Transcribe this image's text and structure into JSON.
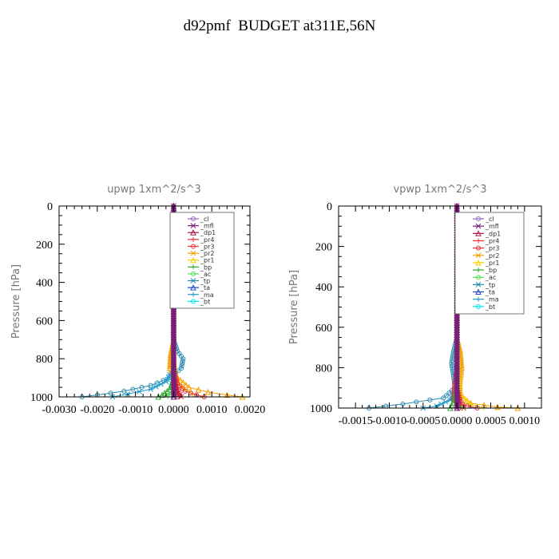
{
  "title": "d92pmf  BUDGET at311E,56N",
  "legend_items": [
    {
      "name": "_cl",
      "color": "#9a66cc"
    },
    {
      "name": "_mfl",
      "color": "#7a1f7a"
    },
    {
      "name": "_dp1",
      "color": "#b0104a"
    },
    {
      "name": "_pr4",
      "color": "#e8303a"
    },
    {
      "name": "_pr3",
      "color": "#e8303a"
    },
    {
      "name": "_pr2",
      "color": "#f4a000"
    },
    {
      "name": "_pr1",
      "color": "#f5d000"
    },
    {
      "name": "_bp",
      "color": "#33aa33"
    },
    {
      "name": "_ac",
      "color": "#55dd55"
    },
    {
      "name": "_tp",
      "color": "#2a8ab0"
    },
    {
      "name": "_ta",
      "color": "#2244cc"
    },
    {
      "name": "_ma",
      "color": "#2299cc"
    },
    {
      "name": "_bt",
      "color": "#00e5ee"
    }
  ],
  "chart_data": [
    {
      "type": "line",
      "title": "upwp   1xm^2/s^3",
      "ylabel": "Pressure  [hPa]",
      "xlim": [
        -0.003,
        0.002
      ],
      "ylim": [
        1000,
        0
      ],
      "xticks": [
        "-0.0030",
        "-0.0020",
        "-0.0010",
        "0.0000",
        "0.0010",
        "0.0020"
      ],
      "xtick_values": [
        -0.003,
        -0.002,
        -0.001,
        0.0,
        0.001,
        0.002
      ],
      "yticks": [
        "0",
        "200",
        "400",
        "600",
        "800",
        "1000"
      ],
      "ytick_values": [
        0,
        200,
        400,
        600,
        800,
        1000
      ],
      "legend_position": "top-right",
      "series": [
        {
          "name": "_tp",
          "p": [
            0,
            700,
            760,
            800,
            850,
            900,
            940,
            970,
            990,
            1000
          ],
          "x": [
            0,
            0,
            0.0001,
            0.00025,
            0.0002,
            -0.0001,
            -0.0006,
            -0.0013,
            -0.002,
            -0.0024
          ]
        },
        {
          "name": "_ma",
          "p": [
            0,
            850,
            920,
            960,
            985,
            1000
          ],
          "x": [
            0,
            0,
            -0.0002,
            -0.0006,
            -0.0012,
            -0.0016
          ]
        },
        {
          "name": "_pr2",
          "p": [
            0,
            700,
            780,
            850,
            900,
            950,
            975,
            990,
            1000
          ],
          "x": [
            0,
            0,
            -8e-05,
            -0.0001,
            0.0001,
            0.0004,
            0.0009,
            0.0014,
            0.0018
          ]
        },
        {
          "name": "_pr1",
          "p": [
            0,
            800,
            900,
            950,
            985,
            1000
          ],
          "x": [
            0,
            0,
            8e-05,
            0.0002,
            0.0005,
            0.0008
          ]
        },
        {
          "name": "_pr3",
          "p": [
            0,
            850,
            930,
            970,
            990,
            1000
          ],
          "x": [
            0,
            0,
            0.0001,
            0.0003,
            0.0006,
            0.0008
          ]
        },
        {
          "name": "_pr4",
          "p": [
            0,
            900,
            960,
            1000
          ],
          "x": [
            0,
            0,
            0.0001,
            0.0002
          ]
        },
        {
          "name": "_bp",
          "p": [
            0,
            900,
            960,
            990,
            1000
          ],
          "x": [
            0,
            0,
            -0.0001,
            -0.0003,
            -0.0004
          ]
        },
        {
          "name": "_ac",
          "p": [
            0,
            930,
            975,
            1000
          ],
          "x": [
            0,
            0,
            -6e-05,
            -0.00015
          ]
        },
        {
          "name": "_dp1",
          "p": [
            0,
            900,
            1000
          ],
          "x": [
            0,
            0,
            0.0001
          ]
        },
        {
          "name": "_cl",
          "p": [
            0,
            1000
          ],
          "x": [
            0,
            0
          ]
        },
        {
          "name": "_mfl",
          "p": [
            0,
            1000
          ],
          "x": [
            0,
            0
          ]
        }
      ]
    },
    {
      "type": "line",
      "title": "vpwp   1xm^2/s^3",
      "ylabel": "Pressure  [hPa]",
      "xlim": [
        -0.00175,
        0.00125
      ],
      "ylim": [
        1000,
        0
      ],
      "xticks": [
        "-0.0015",
        "-0.0010",
        "-0.0005",
        "0.0000",
        "0.0005",
        "0.0010"
      ],
      "xtick_values": [
        -0.0015,
        -0.001,
        -0.0005,
        0.0,
        0.0005,
        0.001
      ],
      "yticks": [
        "0",
        "200",
        "400",
        "600",
        "800",
        "1000"
      ],
      "ytick_values": [
        0,
        200,
        400,
        600,
        800,
        1000
      ],
      "legend_position": "top-right",
      "series": [
        {
          "name": "_tp",
          "p": [
            0,
            650,
            720,
            780,
            840,
            900,
            950,
            980,
            1000
          ],
          "x": [
            0,
            0,
            -5e-05,
            -8e-05,
            -5e-05,
            -3e-05,
            -0.0002,
            -0.0008,
            -0.0013
          ]
        },
        {
          "name": "_ma",
          "p": [
            0,
            900,
            960,
            990,
            1000
          ],
          "x": [
            0,
            0,
            -0.0001,
            -0.0003,
            -0.0005
          ]
        },
        {
          "name": "_pr2",
          "p": [
            0,
            650,
            720,
            800,
            880,
            940,
            975,
            995,
            1000
          ],
          "x": [
            0,
            0,
            5e-05,
            7e-05,
            4e-05,
            5e-05,
            0.0002,
            0.0006,
            0.0009
          ]
        },
        {
          "name": "_pr1",
          "p": [
            0,
            750,
            850,
            930,
            980,
            1000
          ],
          "x": [
            0,
            0,
            4e-05,
            5e-05,
            0.0002,
            0.0004
          ]
        },
        {
          "name": "_pr3",
          "p": [
            0,
            800,
            900,
            960,
            990,
            1000
          ],
          "x": [
            0,
            0,
            -4e-05,
            -5e-05,
            0.00015,
            0.0003
          ]
        },
        {
          "name": "_pr4",
          "p": [
            0,
            900,
            970,
            1000
          ],
          "x": [
            0,
            0,
            5e-05,
            0.0001
          ]
        },
        {
          "name": "_bp",
          "p": [
            0,
            900,
            960,
            1000
          ],
          "x": [
            0,
            0,
            -4e-05,
            -0.0001
          ]
        },
        {
          "name": "_ac",
          "p": [
            0,
            930,
            980,
            1000
          ],
          "x": [
            0,
            0,
            3e-05,
            8e-05
          ]
        },
        {
          "name": "_dp1",
          "p": [
            0,
            900,
            1000
          ],
          "x": [
            0,
            0,
            3e-05
          ]
        },
        {
          "name": "_cl",
          "p": [
            0,
            1000
          ],
          "x": [
            0,
            0
          ]
        },
        {
          "name": "_mfl",
          "p": [
            0,
            1000
          ],
          "x": [
            0,
            0
          ]
        }
      ]
    }
  ]
}
